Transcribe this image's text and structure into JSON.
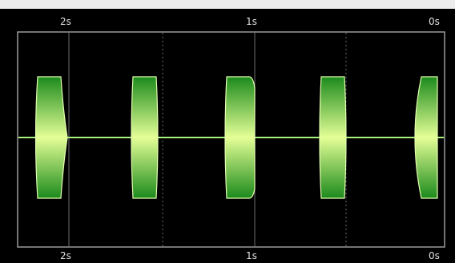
{
  "timeline": {
    "top_labels": [
      "2s",
      "1s",
      "0s"
    ],
    "bottom_labels": [
      "2s",
      "1s",
      "0s"
    ]
  },
  "colors": {
    "background": "#000000",
    "plot_border": "#9a9a9a",
    "gridline": "#6e6e6e",
    "signal_line": "#a8f07a",
    "burst_top": "#1c8a1c",
    "burst_mid": "#e4ff96",
    "burst_outline": "#e4ffb0",
    "top_strip": "#ececec",
    "label_text": "#e2e2e2"
  },
  "waveform": {
    "type": "audio-bursts",
    "burst_count": 5
  }
}
